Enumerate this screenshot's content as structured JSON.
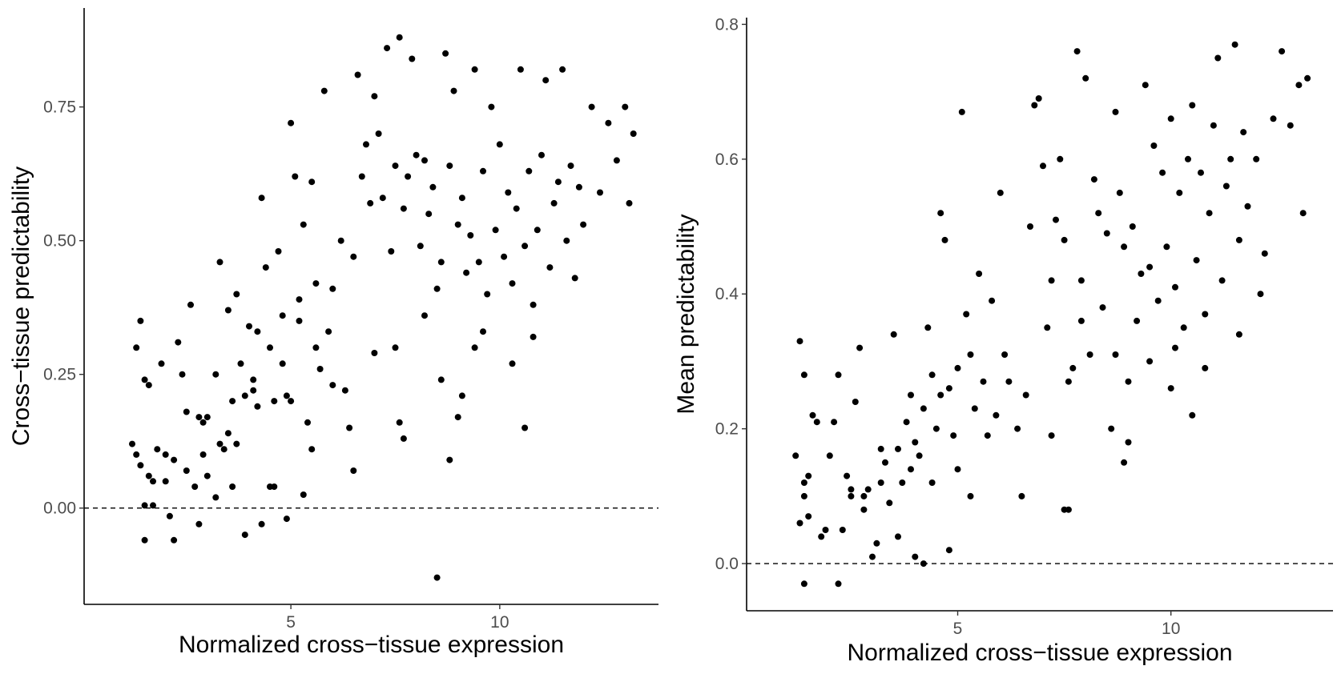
{
  "chart_data": [
    {
      "type": "scatter",
      "xlabel": "Normalized cross−tissue expression",
      "ylabel": "Cross−tissue predictability",
      "xlim": [
        0.05,
        13.8
      ],
      "ylim": [
        -0.18,
        0.935
      ],
      "xticks": [
        5,
        10
      ],
      "xtick_labels": [
        "5",
        "10"
      ],
      "yticks": [
        0.0,
        0.25,
        0.5,
        0.75
      ],
      "ytick_labels": [
        "0.00",
        "0.25",
        "0.50",
        "0.75"
      ],
      "hline": 0,
      "grid": false,
      "points": [
        [
          1.2,
          0.12
        ],
        [
          1.3,
          0.1
        ],
        [
          1.3,
          0.3
        ],
        [
          1.4,
          0.35
        ],
        [
          1.5,
          0.24
        ],
        [
          1.6,
          0.23
        ],
        [
          1.4,
          0.08
        ],
        [
          1.6,
          0.06
        ],
        [
          1.7,
          0.05
        ],
        [
          1.5,
          0.005
        ],
        [
          1.7,
          0.005
        ],
        [
          1.5,
          -0.06
        ],
        [
          1.9,
          0.27
        ],
        [
          2.0,
          0.1
        ],
        [
          2.2,
          0.09
        ],
        [
          2.3,
          0.31
        ],
        [
          2.4,
          0.25
        ],
        [
          2.5,
          0.18
        ],
        [
          2.6,
          0.38
        ],
        [
          2.8,
          0.17
        ],
        [
          2.9,
          0.16
        ],
        [
          2.5,
          0.07
        ],
        [
          2.7,
          0.04
        ],
        [
          2.1,
          -0.015
        ],
        [
          2.2,
          -0.06
        ],
        [
          2.8,
          -0.03
        ],
        [
          3.0,
          0.06
        ],
        [
          3.2,
          0.25
        ],
        [
          3.3,
          0.46
        ],
        [
          3.3,
          0.12
        ],
        [
          3.5,
          0.37
        ],
        [
          3.6,
          0.2
        ],
        [
          3.7,
          0.4
        ],
        [
          3.8,
          0.27
        ],
        [
          3.9,
          0.21
        ],
        [
          4.0,
          0.34
        ],
        [
          4.1,
          0.24
        ],
        [
          4.2,
          0.33
        ],
        [
          4.3,
          0.58
        ],
        [
          4.4,
          0.45
        ],
        [
          4.5,
          0.3
        ],
        [
          4.6,
          0.2
        ],
        [
          4.7,
          0.48
        ],
        [
          4.8,
          0.36
        ],
        [
          4.9,
          0.21
        ],
        [
          5.0,
          0.72
        ],
        [
          5.1,
          0.62
        ],
        [
          5.2,
          0.39
        ],
        [
          5.3,
          0.53
        ],
        [
          5.5,
          0.61
        ],
        [
          5.6,
          0.42
        ],
        [
          5.7,
          0.26
        ],
        [
          5.8,
          0.78
        ],
        [
          6.0,
          0.23
        ],
        [
          6.2,
          0.5
        ],
        [
          6.3,
          0.22
        ],
        [
          6.5,
          0.47
        ],
        [
          6.6,
          0.81
        ],
        [
          6.7,
          0.62
        ],
        [
          6.8,
          0.68
        ],
        [
          7.0,
          0.77
        ],
        [
          7.1,
          0.7
        ],
        [
          7.2,
          0.58
        ],
        [
          7.3,
          0.86
        ],
        [
          7.4,
          0.48
        ],
        [
          7.5,
          0.64
        ],
        [
          7.6,
          0.88
        ],
        [
          7.7,
          0.56
        ],
        [
          7.8,
          0.62
        ],
        [
          7.9,
          0.84
        ],
        [
          8.0,
          0.66
        ],
        [
          8.1,
          0.49
        ],
        [
          8.2,
          0.36
        ],
        [
          8.3,
          0.55
        ],
        [
          8.4,
          0.6
        ],
        [
          8.5,
          0.41
        ],
        [
          8.6,
          0.46
        ],
        [
          8.7,
          0.85
        ],
        [
          8.8,
          0.64
        ],
        [
          8.9,
          0.78
        ],
        [
          9.0,
          0.53
        ],
        [
          9.1,
          0.58
        ],
        [
          9.2,
          0.44
        ],
        [
          9.3,
          0.51
        ],
        [
          9.4,
          0.82
        ],
        [
          9.5,
          0.46
        ],
        [
          9.6,
          0.63
        ],
        [
          9.7,
          0.4
        ],
        [
          9.8,
          0.75
        ],
        [
          9.9,
          0.52
        ],
        [
          10.0,
          0.68
        ],
        [
          10.1,
          0.47
        ],
        [
          10.2,
          0.59
        ],
        [
          10.3,
          0.42
        ],
        [
          10.4,
          0.56
        ],
        [
          10.5,
          0.82
        ],
        [
          10.6,
          0.49
        ],
        [
          10.7,
          0.63
        ],
        [
          10.8,
          0.38
        ],
        [
          10.9,
          0.52
        ],
        [
          11.0,
          0.66
        ],
        [
          11.1,
          0.8
        ],
        [
          11.2,
          0.45
        ],
        [
          11.3,
          0.57
        ],
        [
          11.4,
          0.61
        ],
        [
          11.5,
          0.82
        ],
        [
          11.6,
          0.5
        ],
        [
          11.7,
          0.64
        ],
        [
          11.8,
          0.43
        ],
        [
          11.9,
          0.6
        ],
        [
          12.0,
          0.53
        ],
        [
          12.2,
          0.75
        ],
        [
          12.4,
          0.59
        ],
        [
          12.6,
          0.72
        ],
        [
          12.8,
          0.65
        ],
        [
          13.0,
          0.75
        ],
        [
          13.2,
          0.7
        ],
        [
          13.1,
          0.57
        ],
        [
          6.9,
          0.57
        ],
        [
          7.0,
          0.29
        ],
        [
          7.5,
          0.3
        ],
        [
          7.6,
          0.16
        ],
        [
          7.7,
          0.13
        ],
        [
          8.2,
          0.65
        ],
        [
          8.6,
          0.24
        ],
        [
          8.8,
          0.09
        ],
        [
          9.0,
          0.17
        ],
        [
          9.1,
          0.21
        ],
        [
          9.4,
          0.3
        ],
        [
          9.6,
          0.33
        ],
        [
          10.3,
          0.27
        ],
        [
          10.6,
          0.15
        ],
        [
          10.8,
          0.32
        ],
        [
          8.5,
          -0.13
        ],
        [
          4.5,
          0.04
        ],
        [
          4.6,
          0.04
        ],
        [
          4.3,
          -0.03
        ],
        [
          4.9,
          -0.02
        ],
        [
          5.3,
          0.025
        ],
        [
          3.9,
          -0.05
        ],
        [
          3.6,
          0.04
        ],
        [
          3.2,
          0.02
        ],
        [
          2.9,
          0.1
        ],
        [
          3.4,
          0.11
        ],
        [
          3.7,
          0.12
        ],
        [
          4.2,
          0.19
        ],
        [
          5.0,
          0.2
        ],
        [
          5.4,
          0.16
        ],
        [
          5.5,
          0.11
        ],
        [
          5.6,
          0.3
        ],
        [
          6.0,
          0.41
        ],
        [
          6.4,
          0.15
        ],
        [
          6.5,
          0.07
        ],
        [
          5.9,
          0.33
        ],
        [
          5.2,
          0.35
        ],
        [
          4.8,
          0.27
        ],
        [
          4.1,
          0.22
        ],
        [
          3.5,
          0.14
        ],
        [
          3.0,
          0.17
        ],
        [
          2.0,
          0.05
        ],
        [
          1.8,
          0.11
        ]
      ]
    },
    {
      "type": "scatter",
      "xlabel": "Normalized cross−tissue expression",
      "ylabel": "Mean predictability",
      "xlim": [
        0.05,
        13.8
      ],
      "ylim": [
        -0.07,
        0.81
      ],
      "xticks": [
        5,
        10
      ],
      "xtick_labels": [
        "5",
        "10"
      ],
      "yticks": [
        0.0,
        0.2,
        0.4,
        0.6,
        0.8
      ],
      "ytick_labels": [
        "0.0",
        "0.2",
        "0.4",
        "0.6",
        "0.8"
      ],
      "hline": 0,
      "grid": false,
      "points": [
        [
          1.2,
          0.16
        ],
        [
          1.3,
          0.33
        ],
        [
          1.4,
          0.28
        ],
        [
          1.4,
          0.12
        ],
        [
          1.5,
          0.13
        ],
        [
          1.3,
          0.06
        ],
        [
          1.4,
          0.1
        ],
        [
          1.5,
          0.07
        ],
        [
          1.6,
          0.22
        ],
        [
          1.7,
          0.21
        ],
        [
          1.8,
          0.04
        ],
        [
          1.9,
          0.05
        ],
        [
          2.0,
          0.16
        ],
        [
          2.1,
          0.21
        ],
        [
          2.2,
          0.28
        ],
        [
          2.3,
          0.05
        ],
        [
          2.4,
          0.13
        ],
        [
          2.5,
          0.11
        ],
        [
          2.6,
          0.24
        ],
        [
          2.7,
          0.32
        ],
        [
          2.8,
          0.1
        ],
        [
          2.9,
          0.11
        ],
        [
          3.0,
          0.01
        ],
        [
          3.1,
          0.03
        ],
        [
          3.2,
          0.12
        ],
        [
          3.3,
          0.15
        ],
        [
          3.4,
          0.09
        ],
        [
          3.5,
          0.34
        ],
        [
          3.6,
          0.17
        ],
        [
          3.7,
          0.12
        ],
        [
          3.8,
          0.21
        ],
        [
          3.9,
          0.14
        ],
        [
          4.0,
          0.18
        ],
        [
          4.1,
          0.16
        ],
        [
          4.2,
          0.23
        ],
        [
          4.3,
          0.35
        ],
        [
          4.4,
          0.12
        ],
        [
          4.5,
          0.2
        ],
        [
          4.6,
          0.52
        ],
        [
          4.7,
          0.48
        ],
        [
          4.8,
          0.26
        ],
        [
          4.9,
          0.19
        ],
        [
          5.0,
          0.29
        ],
        [
          5.1,
          0.67
        ],
        [
          5.2,
          0.37
        ],
        [
          5.3,
          0.31
        ],
        [
          5.4,
          0.23
        ],
        [
          5.5,
          0.43
        ],
        [
          5.6,
          0.27
        ],
        [
          5.8,
          0.39
        ],
        [
          6.0,
          0.55
        ],
        [
          6.2,
          0.27
        ],
        [
          6.4,
          0.2
        ],
        [
          6.5,
          0.1
        ],
        [
          6.7,
          0.5
        ],
        [
          6.8,
          0.68
        ],
        [
          6.9,
          0.69
        ],
        [
          7.0,
          0.59
        ],
        [
          7.1,
          0.35
        ],
        [
          7.2,
          0.42
        ],
        [
          7.3,
          0.51
        ],
        [
          7.4,
          0.6
        ],
        [
          7.5,
          0.48
        ],
        [
          7.6,
          0.27
        ],
        [
          7.7,
          0.29
        ],
        [
          7.8,
          0.76
        ],
        [
          7.9,
          0.42
        ],
        [
          8.0,
          0.72
        ],
        [
          8.1,
          0.31
        ],
        [
          8.2,
          0.57
        ],
        [
          8.3,
          0.52
        ],
        [
          8.4,
          0.38
        ],
        [
          8.5,
          0.49
        ],
        [
          8.6,
          0.2
        ],
        [
          8.7,
          0.67
        ],
        [
          8.8,
          0.55
        ],
        [
          8.9,
          0.47
        ],
        [
          9.0,
          0.18
        ],
        [
          9.1,
          0.5
        ],
        [
          9.2,
          0.36
        ],
        [
          9.3,
          0.43
        ],
        [
          9.4,
          0.71
        ],
        [
          9.5,
          0.44
        ],
        [
          9.6,
          0.62
        ],
        [
          9.7,
          0.39
        ],
        [
          9.8,
          0.58
        ],
        [
          9.9,
          0.47
        ],
        [
          10.0,
          0.66
        ],
        [
          10.1,
          0.41
        ],
        [
          10.2,
          0.55
        ],
        [
          10.3,
          0.35
        ],
        [
          10.4,
          0.6
        ],
        [
          10.5,
          0.68
        ],
        [
          10.6,
          0.45
        ],
        [
          10.7,
          0.58
        ],
        [
          10.8,
          0.37
        ],
        [
          10.9,
          0.52
        ],
        [
          11.0,
          0.65
        ],
        [
          11.1,
          0.75
        ],
        [
          11.2,
          0.42
        ],
        [
          11.3,
          0.56
        ],
        [
          11.4,
          0.6
        ],
        [
          11.5,
          0.77
        ],
        [
          11.6,
          0.48
        ],
        [
          11.7,
          0.64
        ],
        [
          11.8,
          0.53
        ],
        [
          12.0,
          0.6
        ],
        [
          12.2,
          0.46
        ],
        [
          12.4,
          0.66
        ],
        [
          12.6,
          0.76
        ],
        [
          12.8,
          0.65
        ],
        [
          13.0,
          0.71
        ],
        [
          13.2,
          0.72
        ],
        [
          13.1,
          0.52
        ],
        [
          7.5,
          0.08
        ],
        [
          7.6,
          0.08
        ],
        [
          8.9,
          0.15
        ],
        [
          10.0,
          0.26
        ],
        [
          10.5,
          0.22
        ],
        [
          10.8,
          0.29
        ],
        [
          1.4,
          -0.03
        ],
        [
          2.2,
          -0.03
        ],
        [
          4.2,
          0.0
        ],
        [
          4.8,
          0.02
        ],
        [
          4.0,
          0.01
        ],
        [
          3.6,
          0.04
        ],
        [
          5.3,
          0.1
        ],
        [
          5.0,
          0.14
        ],
        [
          4.6,
          0.25
        ],
        [
          4.4,
          0.28
        ],
        [
          3.9,
          0.25
        ],
        [
          3.2,
          0.17
        ],
        [
          2.8,
          0.08
        ],
        [
          2.5,
          0.1
        ],
        [
          6.1,
          0.31
        ],
        [
          5.7,
          0.19
        ],
        [
          5.9,
          0.22
        ],
        [
          6.6,
          0.25
        ],
        [
          7.2,
          0.19
        ],
        [
          7.9,
          0.36
        ],
        [
          8.7,
          0.31
        ],
        [
          9.0,
          0.27
        ],
        [
          9.5,
          0.3
        ],
        [
          10.1,
          0.32
        ],
        [
          11.6,
          0.34
        ],
        [
          12.1,
          0.4
        ]
      ]
    }
  ]
}
